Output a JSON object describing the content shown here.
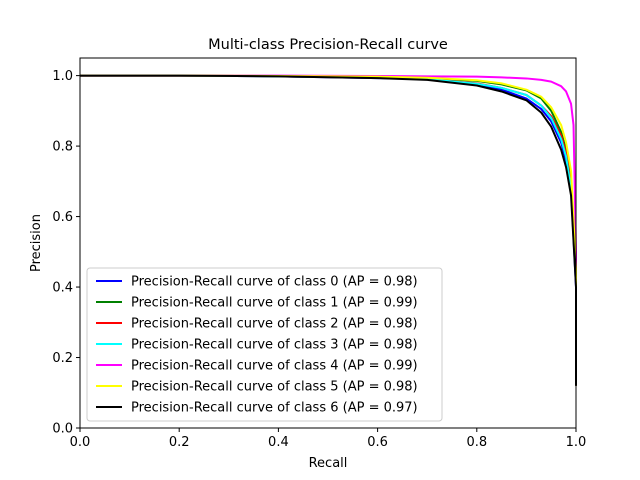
{
  "chart_data": {
    "type": "line",
    "title": "Multi-class Precision-Recall curve",
    "xlabel": "Recall",
    "ylabel": "Precision",
    "xlim": [
      0.0,
      1.0
    ],
    "ylim": [
      0.0,
      1.05
    ],
    "xticks": [
      "0.0",
      "0.2",
      "0.4",
      "0.6",
      "0.8",
      "1.0"
    ],
    "yticks": [
      "0.0",
      "0.2",
      "0.4",
      "0.6",
      "0.8",
      "1.0"
    ],
    "grid": false,
    "legend_position": "lower-left",
    "series": [
      {
        "name": "Precision-Recall curve of class 0 (AP = 0.98)",
        "color": "#0000ff",
        "x": [
          0.0,
          0.2,
          0.4,
          0.6,
          0.7,
          0.8,
          0.85,
          0.9,
          0.93,
          0.95,
          0.97,
          0.98,
          0.99,
          1.0,
          1.0
        ],
        "y": [
          1.0,
          1.0,
          0.998,
          0.993,
          0.99,
          0.975,
          0.96,
          0.935,
          0.905,
          0.87,
          0.81,
          0.76,
          0.68,
          0.4,
          0.12
        ]
      },
      {
        "name": "Precision-Recall curve of class 1 (AP = 0.99)",
        "color": "#008000",
        "x": [
          0.0,
          0.2,
          0.4,
          0.6,
          0.7,
          0.8,
          0.85,
          0.9,
          0.93,
          0.95,
          0.97,
          0.98,
          0.99,
          1.0,
          1.0
        ],
        "y": [
          1.0,
          1.0,
          0.999,
          0.996,
          0.993,
          0.985,
          0.975,
          0.958,
          0.935,
          0.9,
          0.84,
          0.79,
          0.7,
          0.45,
          0.12
        ]
      },
      {
        "name": "Precision-Recall curve of class 2 (AP = 0.98)",
        "color": "#ff0000",
        "x": [
          0.0,
          0.2,
          0.4,
          0.6,
          0.7,
          0.8,
          0.85,
          0.9,
          0.93,
          0.95,
          0.97,
          0.98,
          0.99,
          1.0,
          1.0
        ],
        "y": [
          1.0,
          1.0,
          0.998,
          0.994,
          0.99,
          0.978,
          0.965,
          0.945,
          0.915,
          0.885,
          0.83,
          0.78,
          0.69,
          0.42,
          0.12
        ]
      },
      {
        "name": "Precision-Recall curve of class 3 (AP = 0.98)",
        "color": "#00ffff",
        "x": [
          0.0,
          0.2,
          0.4,
          0.6,
          0.7,
          0.8,
          0.85,
          0.9,
          0.93,
          0.95,
          0.97,
          0.98,
          0.99,
          1.0,
          1.0
        ],
        "y": [
          1.0,
          1.0,
          0.998,
          0.994,
          0.99,
          0.977,
          0.965,
          0.945,
          0.915,
          0.88,
          0.82,
          0.77,
          0.68,
          0.42,
          0.12
        ]
      },
      {
        "name": "Precision-Recall curve of class 4 (AP = 0.99)",
        "color": "#ff00ff",
        "x": [
          0.0,
          0.2,
          0.4,
          0.6,
          0.7,
          0.8,
          0.85,
          0.9,
          0.93,
          0.95,
          0.97,
          0.98,
          0.99,
          0.995,
          1.0,
          1.0
        ],
        "y": [
          1.0,
          1.0,
          1.0,
          0.999,
          0.998,
          0.997,
          0.995,
          0.992,
          0.988,
          0.983,
          0.97,
          0.955,
          0.92,
          0.86,
          0.5,
          0.12
        ]
      },
      {
        "name": "Precision-Recall curve of class 5 (AP = 0.98)",
        "color": "#ffff00",
        "x": [
          0.0,
          0.2,
          0.4,
          0.6,
          0.7,
          0.8,
          0.85,
          0.9,
          0.93,
          0.95,
          0.97,
          0.98,
          0.99,
          1.0,
          1.0
        ],
        "y": [
          1.0,
          1.0,
          0.999,
          0.997,
          0.994,
          0.987,
          0.978,
          0.96,
          0.94,
          0.91,
          0.86,
          0.81,
          0.73,
          0.45,
          0.12
        ]
      },
      {
        "name": "Precision-Recall curve of class 6 (AP = 0.97)",
        "color": "#000000",
        "x": [
          0.0,
          0.2,
          0.4,
          0.6,
          0.7,
          0.8,
          0.85,
          0.9,
          0.93,
          0.95,
          0.97,
          0.98,
          0.99,
          1.0,
          1.0
        ],
        "y": [
          1.0,
          1.0,
          0.998,
          0.993,
          0.988,
          0.972,
          0.955,
          0.93,
          0.895,
          0.855,
          0.79,
          0.74,
          0.66,
          0.4,
          0.12
        ]
      }
    ]
  }
}
